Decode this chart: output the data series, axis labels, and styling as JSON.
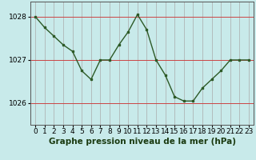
{
  "x": [
    0,
    1,
    2,
    3,
    4,
    5,
    6,
    7,
    8,
    9,
    10,
    11,
    12,
    13,
    14,
    15,
    16,
    17,
    18,
    19,
    20,
    21,
    22,
    23
  ],
  "y": [
    1028.0,
    1027.75,
    1027.55,
    1027.35,
    1027.2,
    1026.75,
    1026.55,
    1027.0,
    1027.0,
    1027.35,
    1027.65,
    1028.05,
    1027.7,
    1027.0,
    1026.65,
    1026.15,
    1026.05,
    1026.05,
    1026.35,
    1026.55,
    1026.75,
    1027.0,
    1027.0,
    1027.0
  ],
  "line_color": "#2d5a27",
  "marker_color": "#2d5a27",
  "bg_color": "#c8eaea",
  "grid_color_v": "#aaaaaa",
  "grid_color_h": "#cc4444",
  "title": "Graphe pression niveau de la mer (hPa)",
  "ylim_min": 1025.5,
  "ylim_max": 1028.35,
  "yticks": [
    1026,
    1027,
    1028
  ],
  "xticks": [
    0,
    1,
    2,
    3,
    4,
    5,
    6,
    7,
    8,
    9,
    10,
    11,
    12,
    13,
    14,
    15,
    16,
    17,
    18,
    19,
    20,
    21,
    22,
    23
  ],
  "title_fontsize": 7.5,
  "tick_fontsize": 6.5,
  "title_color": "#1a3a10"
}
